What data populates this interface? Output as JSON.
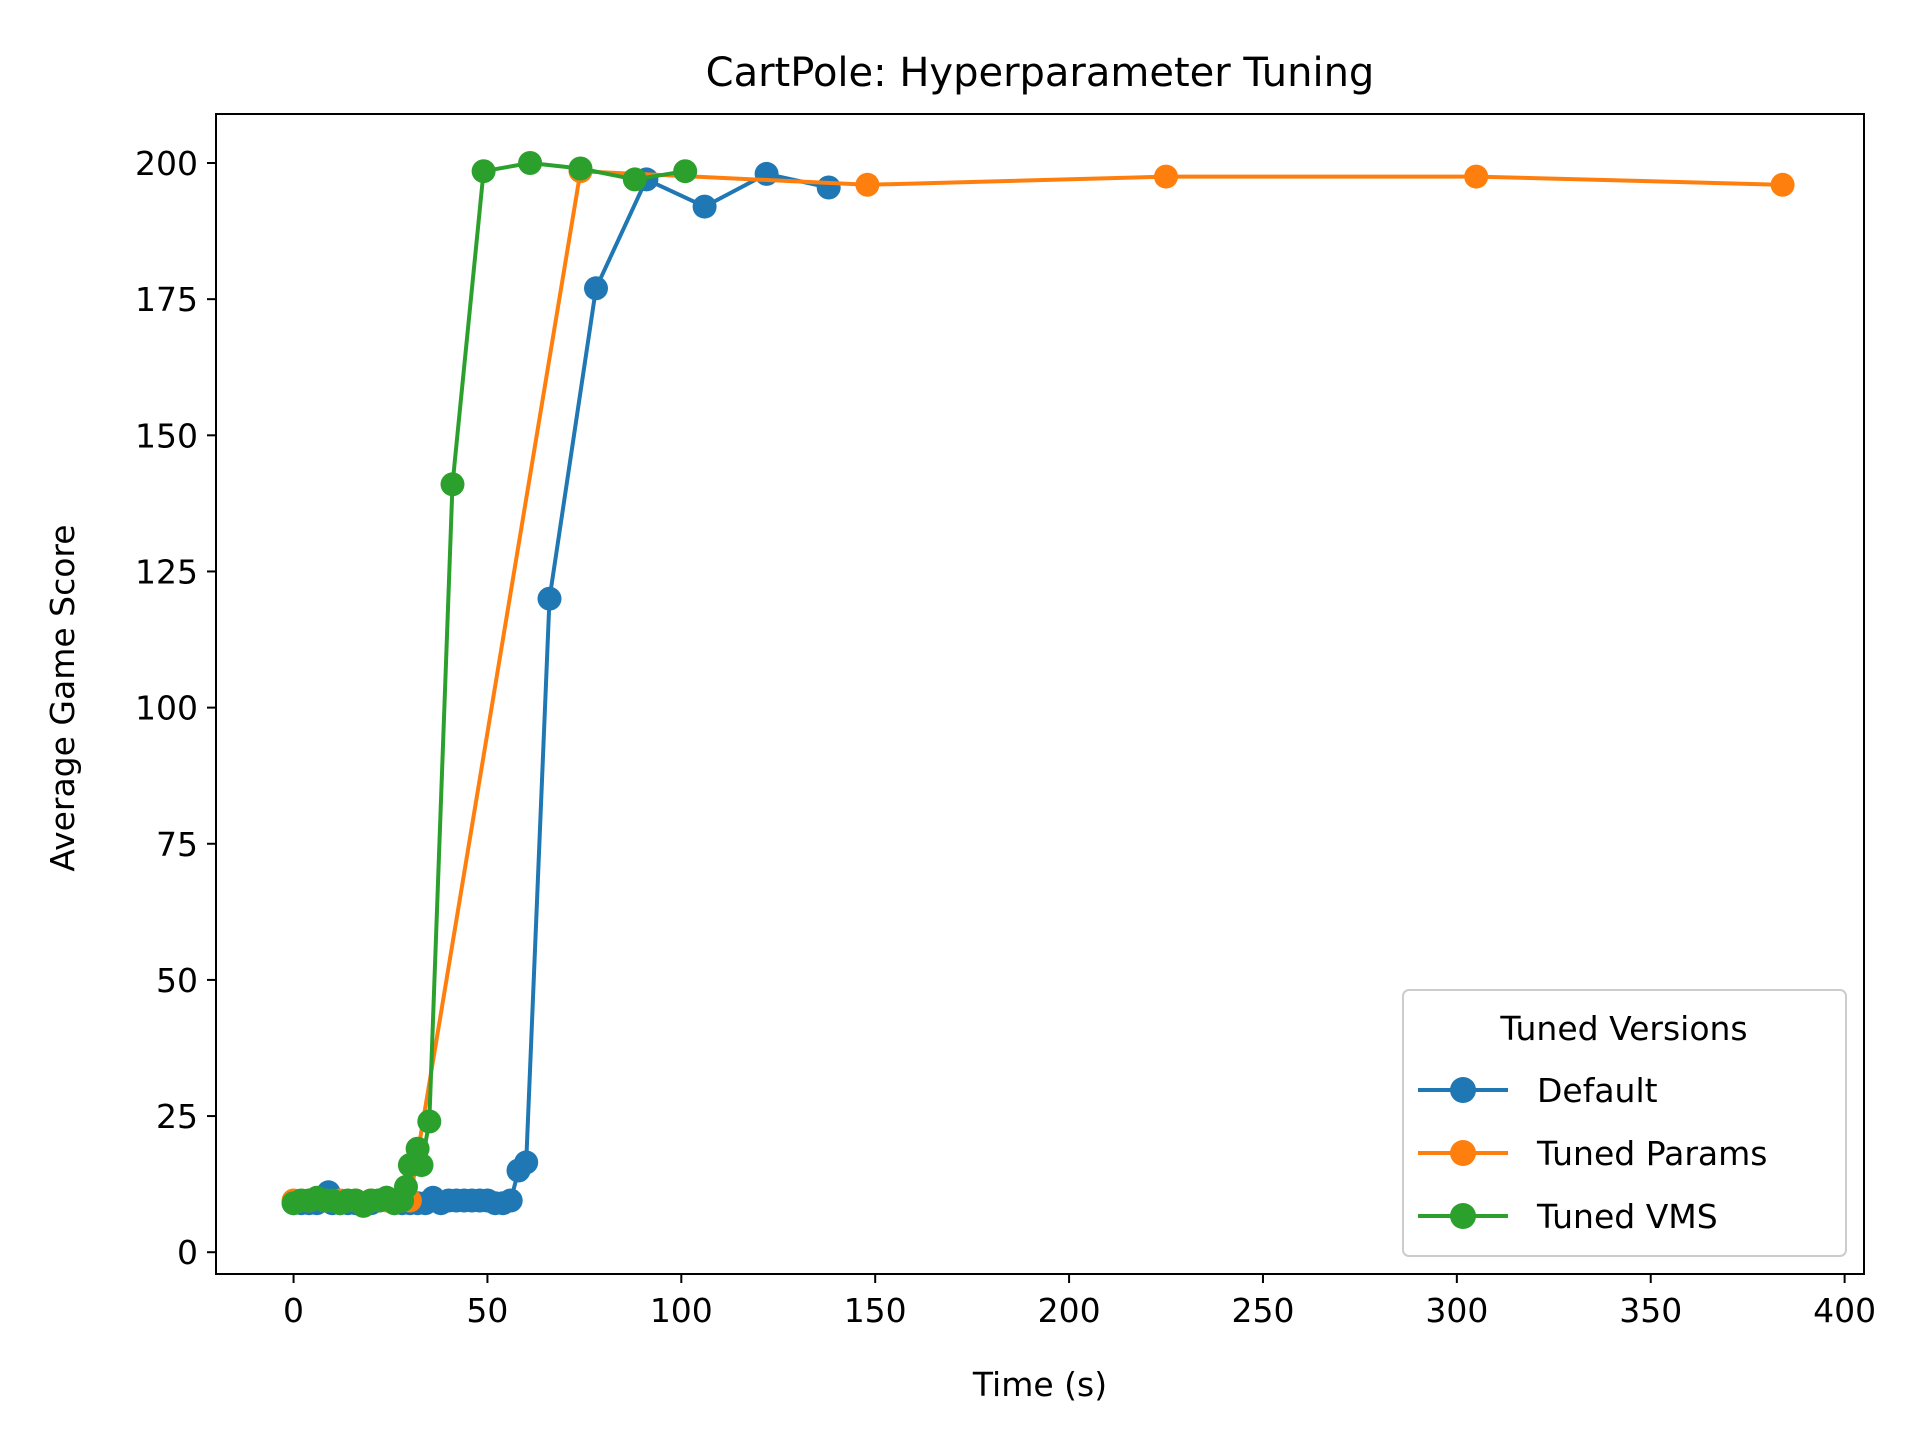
{
  "chart_data": {
    "type": "line",
    "title": "CartPole: Hyperparameter Tuning",
    "xlabel": "Time (s)",
    "ylabel": "Average Game Score",
    "xlim": [
      -20,
      405
    ],
    "ylim": [
      -4,
      209
    ],
    "xticks": [
      0,
      50,
      100,
      150,
      200,
      250,
      300,
      350,
      400
    ],
    "yticks": [
      0,
      25,
      50,
      75,
      100,
      125,
      150,
      175,
      200
    ],
    "grid": false,
    "legend": {
      "title": "Tuned Versions",
      "placement": "lower-right"
    },
    "series": [
      {
        "name": "Default",
        "color": "#1f77b4",
        "x": [
          0,
          2,
          4,
          6,
          8,
          9,
          10,
          12,
          14,
          16,
          18,
          20,
          22,
          24,
          26,
          28,
          30,
          32,
          34,
          36,
          38,
          40,
          42,
          44,
          46,
          48,
          50,
          52,
          54,
          56,
          58,
          60,
          66,
          78,
          91,
          106,
          122,
          138
        ],
        "y": [
          9,
          9,
          9,
          9,
          10,
          11,
          9,
          9,
          9,
          9,
          9,
          9,
          9.5,
          10,
          9,
          9,
          9,
          9,
          9,
          10,
          9,
          9.5,
          9.5,
          9.5,
          9.5,
          9.5,
          9.5,
          9,
          9,
          9.5,
          15,
          16.5,
          120,
          177,
          197,
          192,
          198,
          195.5
        ]
      },
      {
        "name": "Tuned Params",
        "color": "#ff7f0e",
        "x": [
          0,
          4,
          8,
          12,
          16,
          20,
          24,
          28,
          30,
          74,
          148,
          225,
          305,
          384
        ],
        "y": [
          9.5,
          9.5,
          9.5,
          9.5,
          9.5,
          9.5,
          9.5,
          9.5,
          9.5,
          198.5,
          196,
          197.5,
          197.5,
          196
        ]
      },
      {
        "name": "Tuned VMS",
        "color": "#2ca02c",
        "x": [
          0,
          2,
          4,
          6,
          8,
          10,
          12,
          14,
          16,
          18,
          20,
          22,
          24,
          26,
          28,
          29,
          30,
          32,
          33,
          35,
          41,
          49,
          61,
          74,
          88,
          101
        ],
        "y": [
          9,
          9.5,
          9.5,
          10,
          9.5,
          9.5,
          9,
          9.5,
          9.5,
          8.5,
          9.5,
          9.5,
          10,
          9,
          9.5,
          12,
          16,
          19,
          16,
          24,
          141,
          198.5,
          200,
          199,
          197,
          198.5
        ]
      }
    ]
  }
}
